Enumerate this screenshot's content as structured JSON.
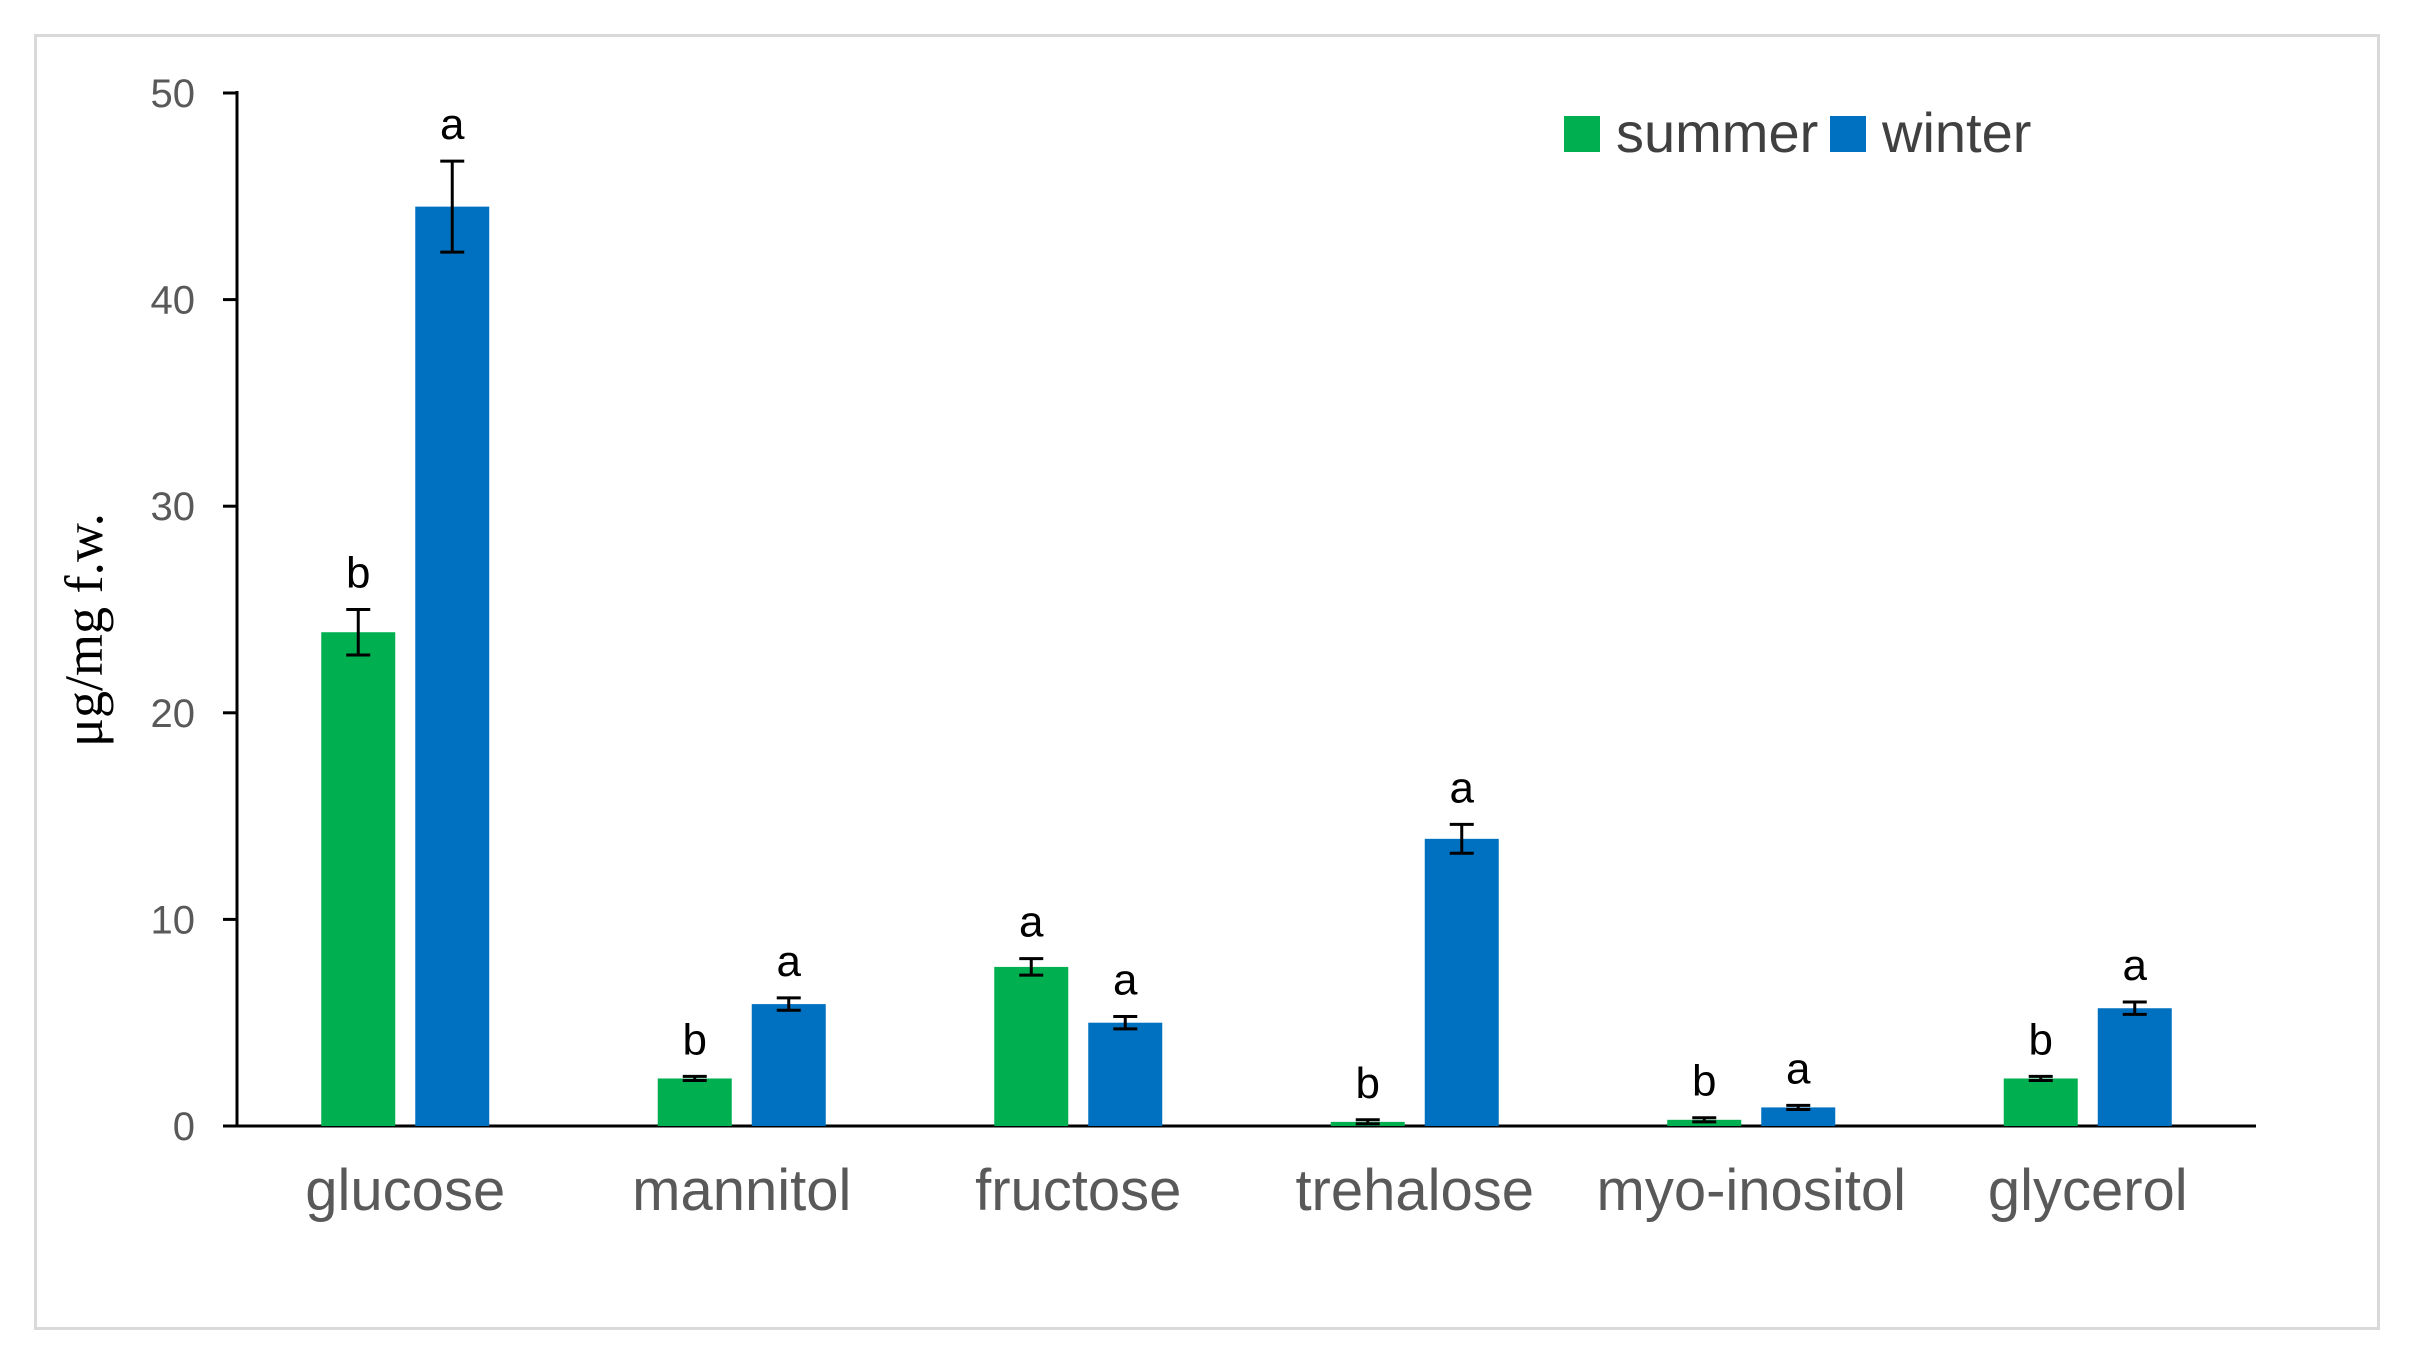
{
  "chart_data": {
    "type": "bar",
    "title": "",
    "xlabel": "",
    "ylabel": "μg/mg f.w.",
    "ylim": [
      0,
      50
    ],
    "yticks": [
      0,
      10,
      20,
      30,
      40,
      50
    ],
    "grid": false,
    "legend_position": "top-right",
    "categories": [
      "glucose",
      "mannitol",
      "fructose",
      "trehalose",
      "myo-inositol",
      "glycerol"
    ],
    "series": [
      {
        "name": "summer",
        "color": "#00b050",
        "values": [
          23.9,
          2.3,
          7.7,
          0.2,
          0.3,
          2.3
        ],
        "errors": [
          1.1,
          0.1,
          0.4,
          0.1,
          0.1,
          0.1
        ],
        "significance": [
          "b",
          "b",
          "a",
          "b",
          "b",
          "b"
        ]
      },
      {
        "name": "winter",
        "color": "#0070c0",
        "values": [
          44.5,
          5.9,
          5.0,
          13.9,
          0.9,
          5.7
        ],
        "errors": [
          2.2,
          0.3,
          0.3,
          0.7,
          0.1,
          0.3
        ],
        "significance": [
          "a",
          "a",
          "a",
          "a",
          "a",
          "a"
        ]
      }
    ]
  }
}
